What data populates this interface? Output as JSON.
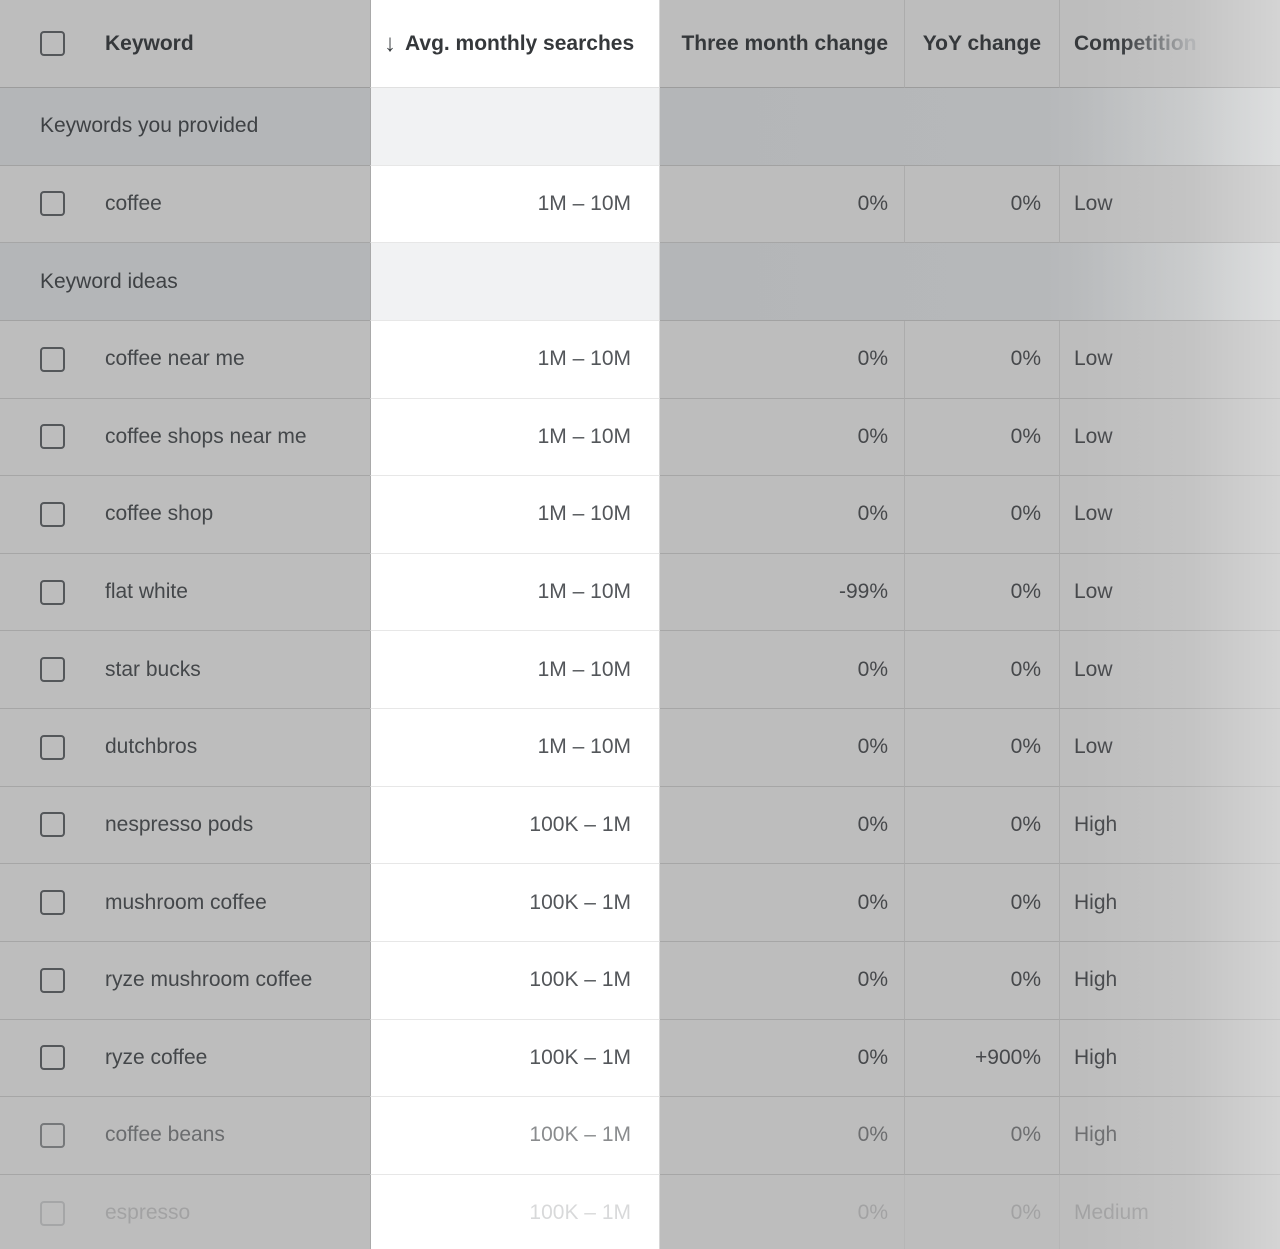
{
  "header": {
    "columns": [
      {
        "key": "keyword",
        "label": "Keyword"
      },
      {
        "key": "avg_monthly_searches",
        "label": "Avg. monthly searches",
        "sorted": "descending",
        "highlighted": true
      },
      {
        "key": "three_month_change",
        "label": "Three month change"
      },
      {
        "key": "yoy_change",
        "label": "YoY change"
      },
      {
        "key": "competition",
        "label": "Competition"
      }
    ]
  },
  "icons": {
    "arrow_down": "↓"
  },
  "sections": [
    {
      "label": "Keywords you provided",
      "rows": [
        {
          "keyword": "coffee",
          "avg_monthly_searches": "1M – 10M",
          "three_month_change": "0%",
          "yoy_change": "0%",
          "competition": "Low",
          "fade": ""
        }
      ]
    },
    {
      "label": "Keyword ideas",
      "rows": [
        {
          "keyword": "coffee near me",
          "avg_monthly_searches": "1M – 10M",
          "three_month_change": "0%",
          "yoy_change": "0%",
          "competition": "Low",
          "fade": ""
        },
        {
          "keyword": "coffee shops near me",
          "avg_monthly_searches": "1M – 10M",
          "three_month_change": "0%",
          "yoy_change": "0%",
          "competition": "Low",
          "fade": ""
        },
        {
          "keyword": "coffee shop",
          "avg_monthly_searches": "1M – 10M",
          "three_month_change": "0%",
          "yoy_change": "0%",
          "competition": "Low",
          "fade": ""
        },
        {
          "keyword": "flat white",
          "avg_monthly_searches": "1M – 10M",
          "three_month_change": "-99%",
          "yoy_change": "0%",
          "competition": "Low",
          "fade": ""
        },
        {
          "keyword": "star bucks",
          "avg_monthly_searches": "1M – 10M",
          "three_month_change": "0%",
          "yoy_change": "0%",
          "competition": "Low",
          "fade": ""
        },
        {
          "keyword": "dutchbros",
          "avg_monthly_searches": "1M – 10M",
          "three_month_change": "0%",
          "yoy_change": "0%",
          "competition": "Low",
          "fade": ""
        },
        {
          "keyword": "nespresso pods",
          "avg_monthly_searches": "100K – 1M",
          "three_month_change": "0%",
          "yoy_change": "0%",
          "competition": "High",
          "fade": ""
        },
        {
          "keyword": "mushroom coffee",
          "avg_monthly_searches": "100K – 1M",
          "three_month_change": "0%",
          "yoy_change": "0%",
          "competition": "High",
          "fade": ""
        },
        {
          "keyword": "ryze mushroom coffee",
          "avg_monthly_searches": "100K – 1M",
          "three_month_change": "0%",
          "yoy_change": "0%",
          "competition": "High",
          "fade": ""
        },
        {
          "keyword": "ryze coffee",
          "avg_monthly_searches": "100K – 1M",
          "three_month_change": "0%",
          "yoy_change": "+900%",
          "competition": "High",
          "fade": ""
        },
        {
          "keyword": "coffee beans",
          "avg_monthly_searches": "100K – 1M",
          "three_month_change": "0%",
          "yoy_change": "0%",
          "competition": "High",
          "fade": "light"
        },
        {
          "keyword": "espresso",
          "avg_monthly_searches": "100K – 1M",
          "three_month_change": "0%",
          "yoy_change": "0%",
          "competition": "Medium",
          "fade": "heavy"
        }
      ]
    }
  ],
  "colors": {
    "dim_overlay_gray": "#bdbdbd",
    "section_row_gray": "#b4b6b8",
    "highlight_column_bg": "#ffffff",
    "row_border_gray": "#a6a6a6",
    "highlight_border": "#e7e7e7",
    "header_text": "#35383b",
    "body_text": "#45474a"
  }
}
